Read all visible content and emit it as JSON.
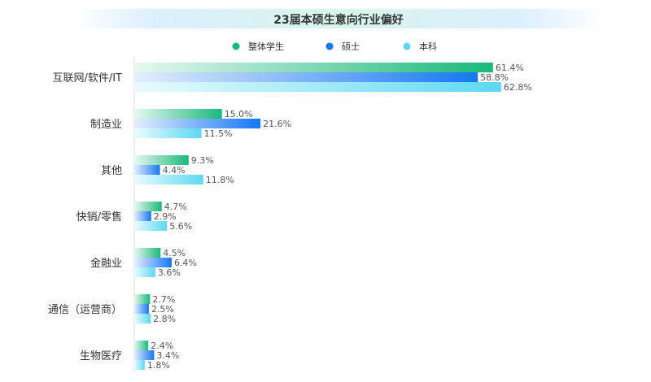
{
  "chart_data": {
    "type": "bar",
    "orientation": "horizontal",
    "title": "23届本硕生意向行业偏好",
    "xlabel": "",
    "ylabel": "",
    "xlim": [
      0,
      70
    ],
    "grid": false,
    "legend_position": "top-center",
    "value_suffix": "%",
    "categories": [
      "互联网/软件/IT",
      "制造业",
      "其他",
      "快销/零售",
      "金融业",
      "通信（运营商）",
      "生物医疗"
    ],
    "series": [
      {
        "name": "整体学生",
        "color": "#18B97A",
        "values": [
          61.4,
          15.0,
          9.3,
          4.7,
          4.5,
          2.7,
          2.4
        ]
      },
      {
        "name": "硕士",
        "color": "#1677F2",
        "values": [
          58.8,
          21.6,
          4.4,
          2.9,
          6.4,
          2.5,
          3.4
        ]
      },
      {
        "name": "本科",
        "color": "#5DD8F2",
        "values": [
          62.8,
          11.5,
          11.8,
          5.6,
          3.6,
          2.8,
          1.8
        ]
      }
    ]
  }
}
